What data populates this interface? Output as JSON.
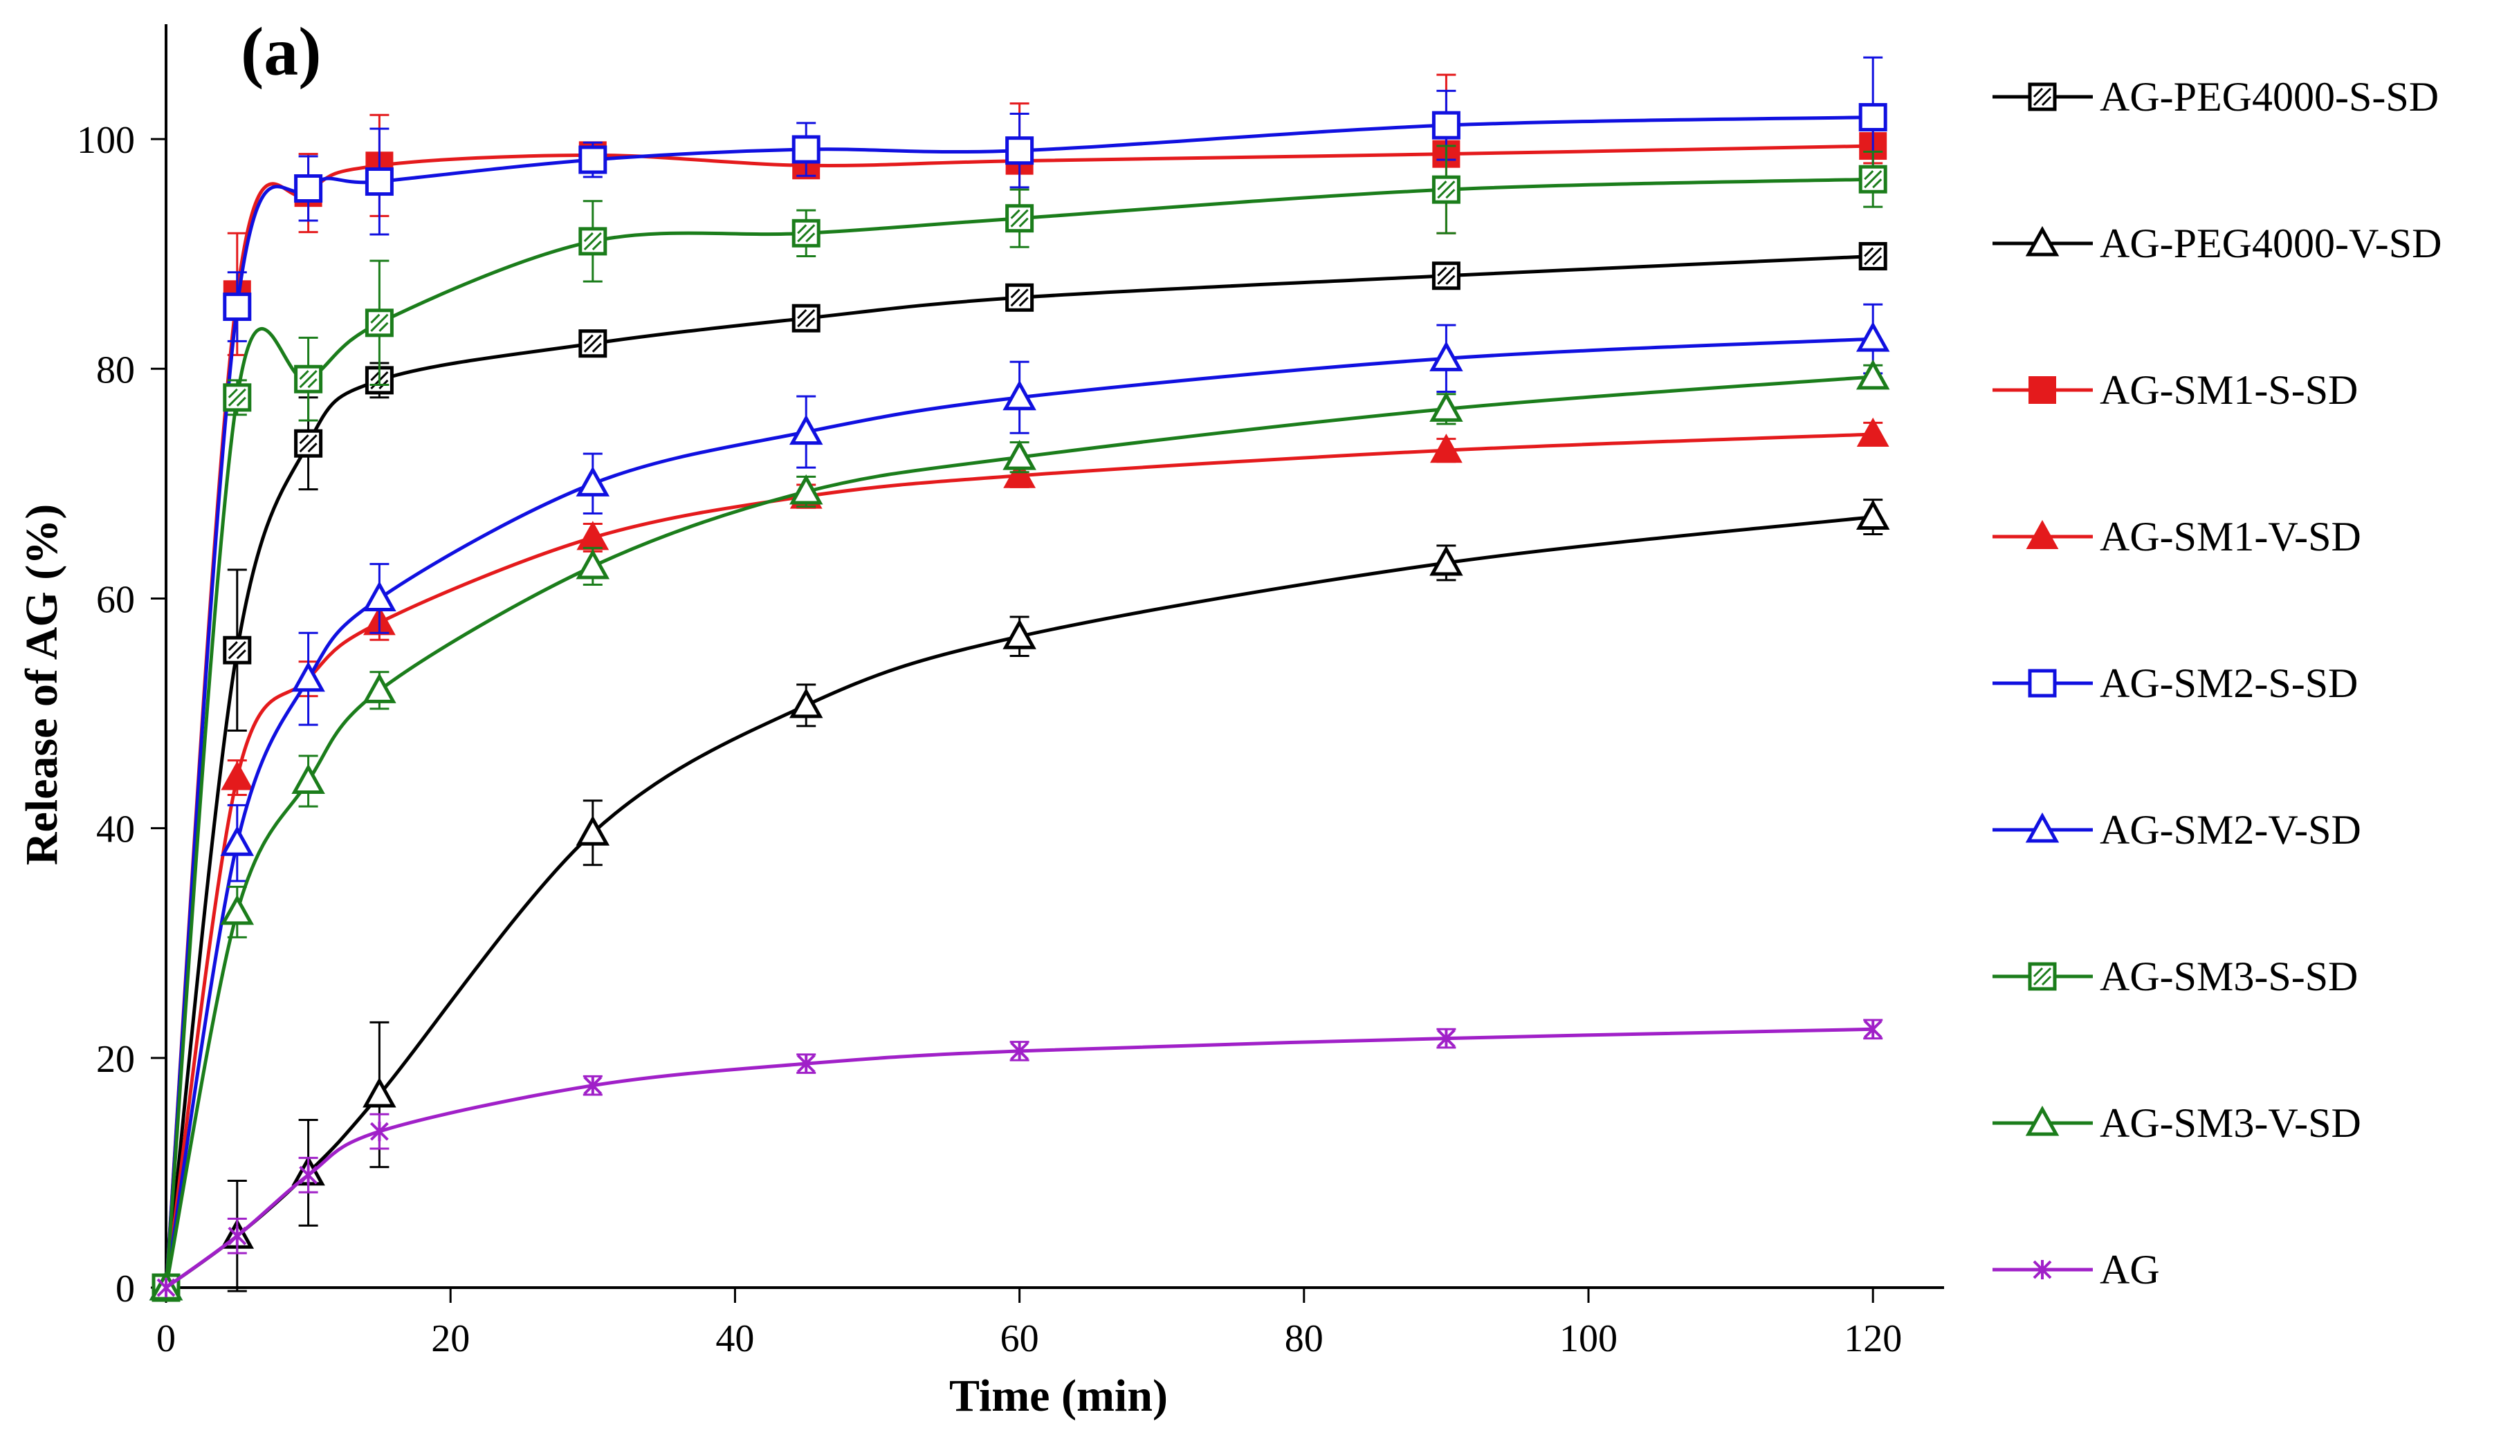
{
  "chart_data": {
    "type": "line",
    "panel_label": "(a)",
    "xlabel": "Time (min)",
    "ylabel": "Release of AG (%)",
    "xlim": [
      0,
      125
    ],
    "ylim": [
      0,
      110
    ],
    "x_ticks": [
      0,
      20,
      40,
      60,
      80,
      100,
      120
    ],
    "y_ticks": [
      0,
      20,
      40,
      60,
      80,
      100
    ],
    "x": [
      0,
      5,
      10,
      15,
      30,
      45,
      60,
      90,
      120
    ],
    "legend_position": "right",
    "series": [
      {
        "name": "AG-PEG4000-S-SD",
        "color": "#000000",
        "marker": "square-hatched",
        "values": [
          0,
          55.5,
          73.5,
          79,
          82.2,
          84.4,
          86.2,
          88.1,
          89.8
        ],
        "errors": [
          0,
          7,
          4,
          1.5,
          1,
          1,
          1,
          1,
          1
        ]
      },
      {
        "name": "AG-PEG4000-V-SD",
        "color": "#000000",
        "marker": "triangle-open",
        "values": [
          0,
          4.5,
          10,
          16.8,
          39.6,
          50.7,
          56.7,
          63.1,
          67.1
        ],
        "errors": [
          0,
          4.8,
          4.6,
          6.3,
          2.8,
          1.8,
          1.7,
          1.5,
          1.5
        ]
      },
      {
        "name": "AG-SM1-S-SD",
        "color": "#e41a1c",
        "marker": "square-filled",
        "values": [
          0,
          86.5,
          95.3,
          97.7,
          98.6,
          97.7,
          98.1,
          98.7,
          99.4
        ],
        "errors": [
          0,
          5.3,
          3.4,
          4.4,
          1,
          1,
          5,
          6.9,
          1.5
        ]
      },
      {
        "name": "AG-SM1-V-SD",
        "color": "#e41a1c",
        "marker": "triangle-filled",
        "values": [
          0,
          44.4,
          53,
          57.9,
          65.3,
          68.9,
          70.7,
          72.9,
          74.3
        ],
        "errors": [
          0,
          1.5,
          1.5,
          1.5,
          1.2,
          1,
          1,
          1,
          1
        ]
      },
      {
        "name": "AG-SM2-S-SD",
        "color": "#1010e0",
        "marker": "square-open",
        "values": [
          0,
          85.4,
          95.7,
          96.3,
          98.2,
          99.1,
          99,
          101.2,
          101.9
        ],
        "errors": [
          0,
          3,
          2.8,
          4.6,
          1.5,
          2.3,
          3.2,
          3,
          5.2
        ]
      },
      {
        "name": "AG-SM2-V-SD",
        "color": "#1010e0",
        "marker": "triangle-open",
        "values": [
          0,
          38.7,
          53,
          60,
          70,
          74.5,
          77.5,
          80.9,
          82.6
        ],
        "errors": [
          0,
          3.3,
          4,
          3,
          2.6,
          3.1,
          3.1,
          2.9,
          3
        ]
      },
      {
        "name": "AG-SM3-S-SD",
        "color": "#1b7d1b",
        "marker": "square-hatched",
        "values": [
          0,
          77.5,
          79.1,
          84,
          91.1,
          91.8,
          93.1,
          95.6,
          96.5
        ],
        "errors": [
          0,
          1.5,
          3.6,
          5.4,
          3.5,
          2,
          2.5,
          3.8,
          2.4
        ]
      },
      {
        "name": "AG-SM3-V-SD",
        "color": "#1b7d1b",
        "marker": "triangle-open",
        "values": [
          0,
          32.7,
          44.1,
          52,
          62.8,
          69.3,
          72.3,
          76.5,
          79.3
        ],
        "errors": [
          0,
          2.2,
          2.2,
          1.6,
          1.6,
          1.3,
          1.3,
          1.3,
          1
        ]
      },
      {
        "name": "AG",
        "color": "#a020c8",
        "marker": "star",
        "values": [
          0,
          4.5,
          9.8,
          13.6,
          17.6,
          19.5,
          20.6,
          21.7,
          22.5
        ],
        "errors": [
          0,
          1.5,
          1.5,
          1.5,
          0.8,
          0.8,
          0.8,
          0.8,
          0.8
        ]
      }
    ]
  }
}
